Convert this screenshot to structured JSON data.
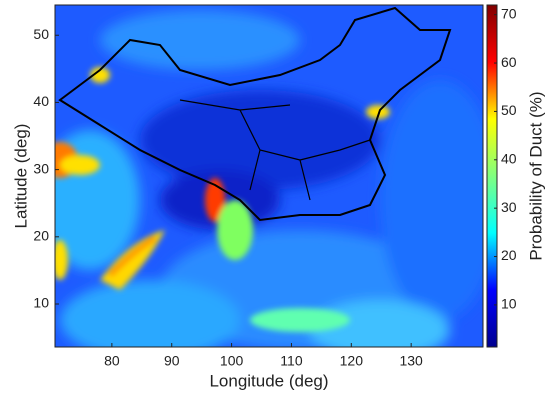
{
  "chart_data": {
    "type": "heatmap",
    "x_label": "Longitude (deg)",
    "y_label": "Latitude (deg)",
    "xlim": [
      70.5,
      142
    ],
    "xticks": [
      80,
      90,
      100,
      110,
      120,
      130
    ],
    "ylim": [
      3.6,
      54.5
    ],
    "yticks": [
      10,
      20,
      30,
      40,
      50
    ],
    "colorbar": {
      "label": "Probability of Duct (%)",
      "lim": [
        1.3,
        72
      ],
      "ticks": [
        10,
        20,
        30,
        40,
        50,
        60,
        70
      ],
      "colormap": "jet"
    }
  }
}
